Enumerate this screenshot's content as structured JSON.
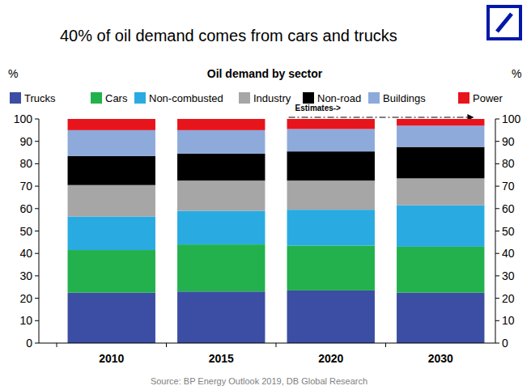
{
  "chart_data": {
    "type": "bar",
    "stacked": true,
    "title": "40% of oil demand comes from cars and trucks",
    "subtitle": "Oil demand by sector",
    "ylabel": "%",
    "y2label": "%",
    "annotation": "Estimates->",
    "source": "Source: BP Energy Outlook 2019, DB Global Research",
    "categories": [
      "2010",
      "2015",
      "2020",
      "2030"
    ],
    "series": [
      {
        "name": "Trucks",
        "color": "#3b4ea3",
        "values": [
          22.5,
          23,
          23.5,
          22.5
        ]
      },
      {
        "name": "Cars",
        "color": "#22b14c",
        "values": [
          19,
          21,
          20,
          20.5
        ]
      },
      {
        "name": "Non-combusted",
        "color": "#29abe2",
        "values": [
          15,
          15,
          16,
          18.5
        ]
      },
      {
        "name": "Industry",
        "color": "#a6a6a6",
        "values": [
          14,
          13.5,
          13,
          12
        ]
      },
      {
        "name": "Non-road",
        "color": "#000000",
        "values": [
          13,
          12,
          13,
          14
        ]
      },
      {
        "name": "Buildings",
        "color": "#8eaadb",
        "values": [
          11.5,
          10.5,
          10,
          9.5
        ]
      },
      {
        "name": "Power",
        "color": "#e8141c",
        "values": [
          5,
          5,
          4.5,
          3
        ]
      }
    ],
    "ylim": [
      0,
      100
    ],
    "yticks": [
      0,
      10,
      20,
      30,
      40,
      50,
      60,
      70,
      80,
      90,
      100
    ],
    "y2lim": [
      0,
      100
    ],
    "y2ticks": [
      0,
      10,
      20,
      30,
      40,
      50,
      60,
      70,
      80,
      90,
      100
    ],
    "grid": false,
    "legend": "top"
  }
}
